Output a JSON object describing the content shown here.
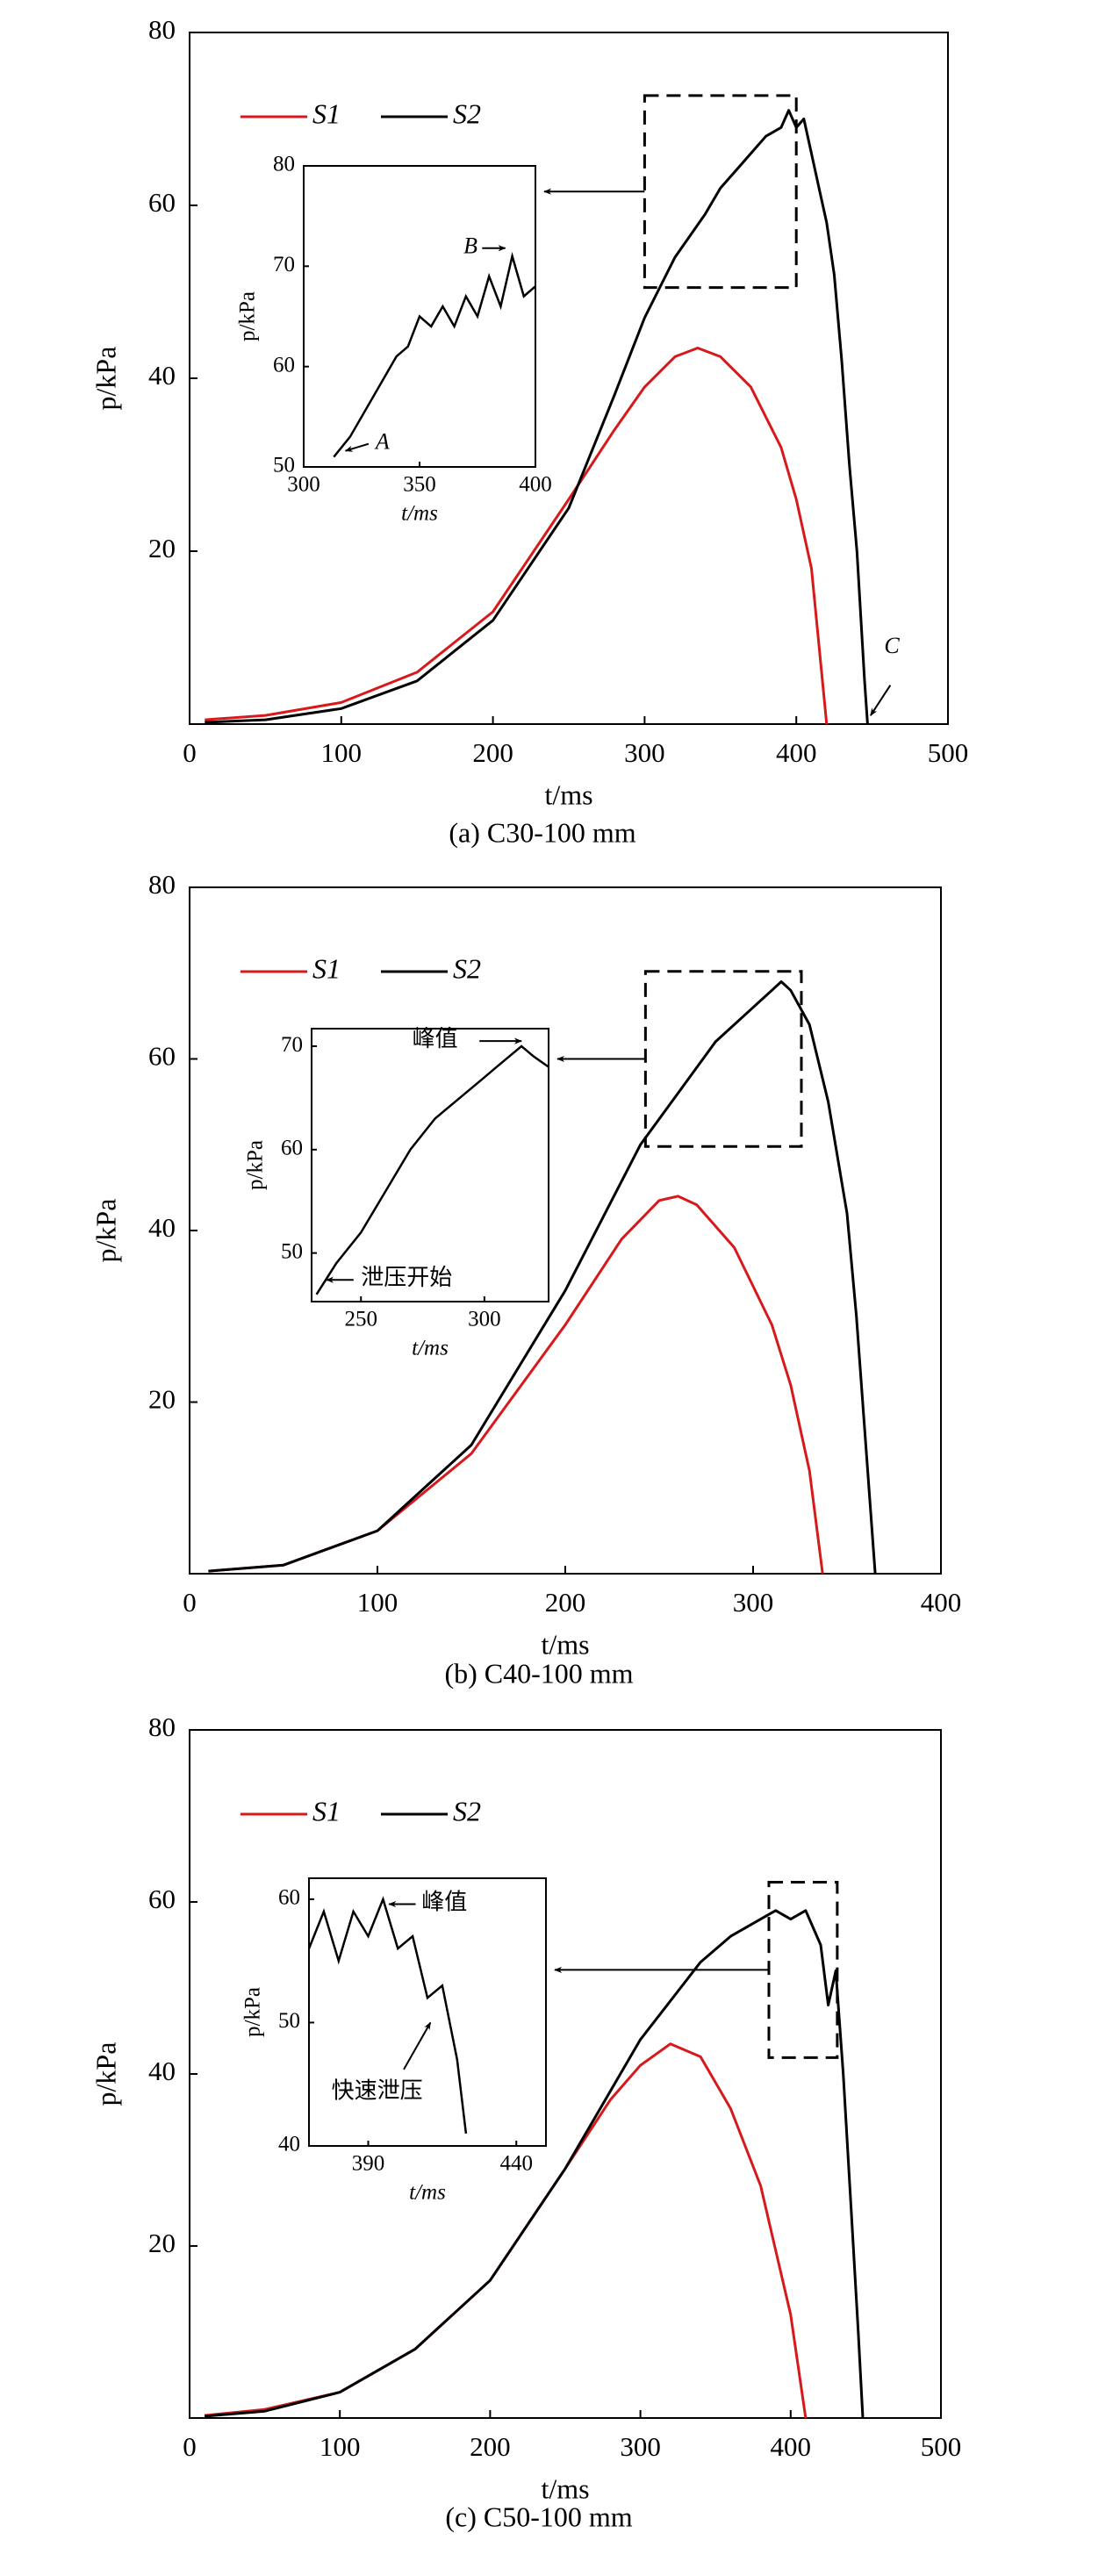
{
  "chart_data": [
    {
      "type": "line",
      "caption": "(a) C30-100 mm",
      "xlabel": "t/ms",
      "ylabel": "p/kPa",
      "xlim": [
        0,
        500
      ],
      "ylim": [
        0,
        80
      ],
      "xticks": [
        0,
        100,
        200,
        300,
        400,
        500
      ],
      "yticks": [
        20,
        40,
        60,
        80
      ],
      "series": [
        {
          "name": "S1",
          "color": "#d7191c",
          "x": [
            10,
            50,
            100,
            150,
            200,
            250,
            280,
            300,
            320,
            335,
            350,
            370,
            390,
            400,
            410,
            420
          ],
          "values": [
            0.5,
            1,
            2.5,
            6,
            13,
            26,
            34,
            39,
            42.5,
            43.5,
            42.5,
            39,
            32,
            26,
            18,
            0
          ]
        },
        {
          "name": "S2",
          "color": "#000000",
          "x": [
            10,
            50,
            100,
            150,
            200,
            250,
            280,
            300,
            320,
            340,
            350,
            360,
            370,
            380,
            390,
            395,
            400,
            405,
            410,
            415,
            420,
            425,
            430,
            435,
            440,
            445,
            447
          ],
          "values": [
            0.2,
            0.5,
            1.8,
            5,
            12,
            25,
            38,
            47,
            54,
            59,
            62,
            64,
            66,
            68,
            69,
            71,
            69,
            70,
            66,
            62,
            58,
            52,
            42,
            30,
            20,
            5,
            0
          ]
        }
      ],
      "annotations": [
        "C"
      ],
      "highlight": {
        "xlim": [
          300,
          400
        ],
        "ylim": [
          50.5,
          72.7
        ]
      },
      "inset": {
        "xlabel": "t/ms",
        "ylabel": "p/kPa",
        "xlim": [
          300,
          400
        ],
        "ylim": [
          50,
          80
        ],
        "xticks": [
          300,
          350,
          400
        ],
        "yticks": [
          50,
          60,
          70,
          80
        ],
        "series": [
          {
            "name": "S2",
            "color": "#000000",
            "x": [
              313,
              320,
              330,
              340,
              345,
              350,
              355,
              360,
              365,
              370,
              375,
              380,
              385,
              390,
              395,
              400
            ],
            "values": [
              51,
              53,
              57,
              61,
              62,
              65,
              64,
              66,
              64,
              67,
              65,
              69,
              66,
              71,
              67,
              68
            ]
          }
        ],
        "annotations": [
          "A",
          "B"
        ]
      }
    },
    {
      "type": "line",
      "caption": "(b) C40-100 mm",
      "xlabel": "t/ms",
      "ylabel": "p/kPa",
      "xlim": [
        0,
        400
      ],
      "ylim": [
        0,
        80
      ],
      "xticks": [
        0,
        100,
        200,
        300,
        400
      ],
      "yticks": [
        20,
        40,
        60,
        80
      ],
      "series": [
        {
          "name": "S1",
          "color": "#d7191c",
          "x": [
            10,
            50,
            100,
            150,
            200,
            230,
            250,
            260,
            270,
            290,
            310,
            320,
            330,
            337
          ],
          "values": [
            0.3,
            1,
            5,
            14,
            29,
            39,
            43.5,
            44,
            43,
            38,
            29,
            22,
            12,
            0
          ]
        },
        {
          "name": "S2",
          "color": "#000000",
          "x": [
            10,
            50,
            100,
            150,
            200,
            240,
            260,
            280,
            300,
            310,
            315,
            320,
            330,
            340,
            350,
            355,
            360,
            365
          ],
          "values": [
            0.3,
            1,
            5,
            15,
            33,
            50,
            56,
            62,
            66,
            68,
            69,
            68,
            64,
            55,
            42,
            30,
            15,
            0
          ]
        }
      ],
      "annotations": [],
      "highlight": {
        "xlim": [
          242.7,
          325.7
        ],
        "ylim": [
          49.8,
          70.2
        ]
      },
      "inset": {
        "xlabel": "t/ms",
        "ylabel": "p/kPa",
        "xlim": [
          230,
          326
        ],
        "ylim": [
          45.3,
          71.7
        ],
        "xticks": [
          250,
          300
        ],
        "yticks": [
          50,
          60,
          70
        ],
        "series": [
          {
            "name": "S2",
            "color": "#000000",
            "x": [
              232,
              240,
              250,
              260,
              270,
              280,
              290,
              300,
              305,
              310,
              315,
              320,
              326
            ],
            "values": [
              46,
              49,
              52,
              56,
              60,
              63,
              65,
              67,
              68,
              69,
              70,
              69,
              68
            ]
          }
        ],
        "annotations": [
          "峰值",
          "泄压开始"
        ]
      }
    },
    {
      "type": "line",
      "caption": "(c) C50-100 mm",
      "xlabel": "t/ms",
      "ylabel": "p/kPa",
      "xlim": [
        0,
        500
      ],
      "ylim": [
        0,
        80
      ],
      "xticks": [
        0,
        100,
        200,
        300,
        400,
        500
      ],
      "yticks": [
        20,
        40,
        60,
        80
      ],
      "series": [
        {
          "name": "S1",
          "color": "#d7191c",
          "x": [
            10,
            50,
            100,
            150,
            200,
            250,
            280,
            300,
            320,
            340,
            360,
            380,
            400,
            410
          ],
          "values": [
            0.3,
            1,
            3,
            8,
            16,
            29,
            37,
            41,
            43.5,
            42,
            36,
            27,
            12,
            0
          ]
        },
        {
          "name": "S2",
          "color": "#000000",
          "x": [
            10,
            50,
            100,
            150,
            200,
            250,
            300,
            340,
            360,
            380,
            390,
            400,
            410,
            420,
            425,
            430,
            435,
            440,
            445,
            448
          ],
          "values": [
            0.2,
            0.8,
            3,
            8,
            16,
            29,
            44,
            53,
            56,
            58,
            59,
            58,
            59,
            55,
            48,
            52,
            40,
            25,
            10,
            0
          ]
        }
      ],
      "annotations": [],
      "highlight": {
        "xlim": [
          385.5,
          431
        ],
        "ylim": [
          41.9,
          62.3
        ]
      },
      "inset": {
        "xlabel": "t/ms",
        "ylabel": "p/kPa",
        "xlim": [
          370,
          450
        ],
        "ylim": [
          40,
          61.7
        ],
        "xticks": [
          390,
          440
        ],
        "yticks": [
          40,
          50,
          60
        ],
        "series": [
          {
            "name": "S2",
            "color": "#000000",
            "x": [
              370,
              375,
              380,
              385,
              390,
              395,
              400,
              405,
              410,
              415,
              420,
              423
            ],
            "values": [
              56,
              59,
              55,
              59,
              57,
              60,
              56,
              57,
              52,
              53,
              47,
              41
            ]
          }
        ],
        "annotations": [
          "峰值",
          "快速泄压"
        ]
      }
    }
  ]
}
